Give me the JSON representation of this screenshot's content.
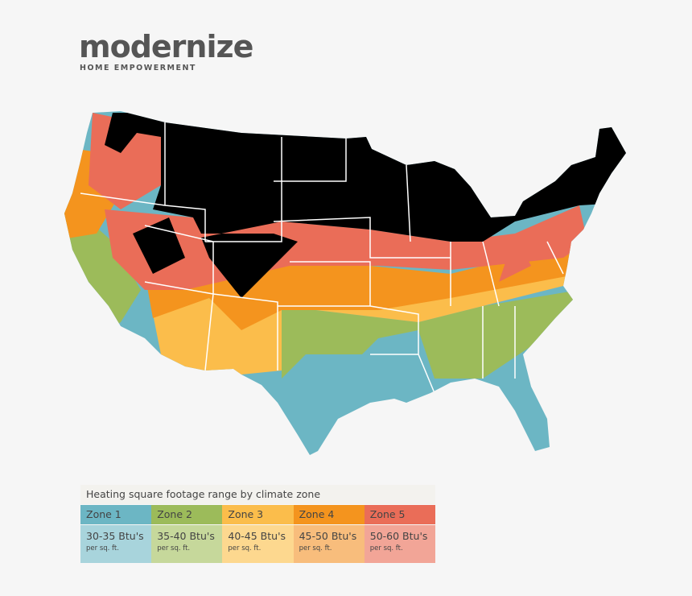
{
  "header": {
    "logo": "modernize",
    "tagline": "HOME EMPOWERMENT"
  },
  "legend": {
    "title": "Heating square footage range by climate zone",
    "zones": [
      {
        "name": "Zone 1",
        "range": "30-35 Btu's",
        "unit": "per sq. ft.",
        "color": "#6cb6c4",
        "light_color": "#a8d4dc"
      },
      {
        "name": "Zone 2",
        "range": "35-40 Btu's",
        "unit": "per sq. ft.",
        "color": "#9cbb5a",
        "light_color": "#c6d89b"
      },
      {
        "name": "Zone 3",
        "range": "40-45 Btu's",
        "unit": "per sq. ft.",
        "color": "#fbbd4b",
        "light_color": "#fdd88f"
      },
      {
        "name": "Zone 4",
        "range": "45-50 Btu's",
        "unit": "per sq. ft.",
        "color": "#f4941e",
        "light_color": "#f8bd7c"
      },
      {
        "name": "Zone 5",
        "range": "50-60 Btu's",
        "unit": "per sq. ft.",
        "color": "#ea6d58",
        "light_color": "#f2a597"
      }
    ]
  }
}
